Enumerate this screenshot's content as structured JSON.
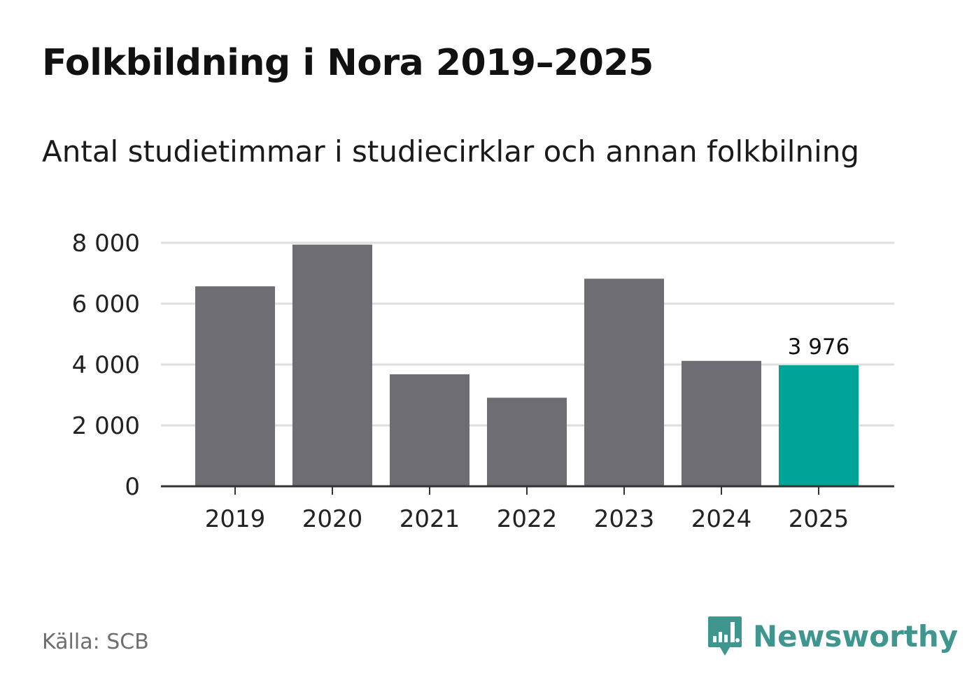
{
  "title": "Folkbildning i Nora 2019–2025",
  "subtitle": "Antal studietimmar i studiecirklar och annan folkbilning",
  "source": "Källa: SCB",
  "brand": {
    "name": "Newsworthy",
    "icon": "newsworthy-logo-icon",
    "color": "#3f968f"
  },
  "colors": {
    "bar": "#6e6d73",
    "highlight": "#00a398",
    "grid": "#dedede",
    "axis": "#333333"
  },
  "chart_data": {
    "type": "bar",
    "categories": [
      "2019",
      "2020",
      "2021",
      "2022",
      "2023",
      "2024",
      "2025"
    ],
    "values": [
      6570,
      7940,
      3680,
      2910,
      6820,
      4120,
      3976
    ],
    "highlight_index": 6,
    "data_labels": [
      {
        "index": 6,
        "text": "3 976"
      }
    ],
    "ylim": [
      0,
      8000
    ],
    "yticks": [
      0,
      2000,
      4000,
      6000,
      8000
    ],
    "ytick_labels": [
      "0",
      "2 000",
      "4 000",
      "6 000",
      "8 000"
    ],
    "grid": true,
    "xlabel": "",
    "ylabel": ""
  }
}
